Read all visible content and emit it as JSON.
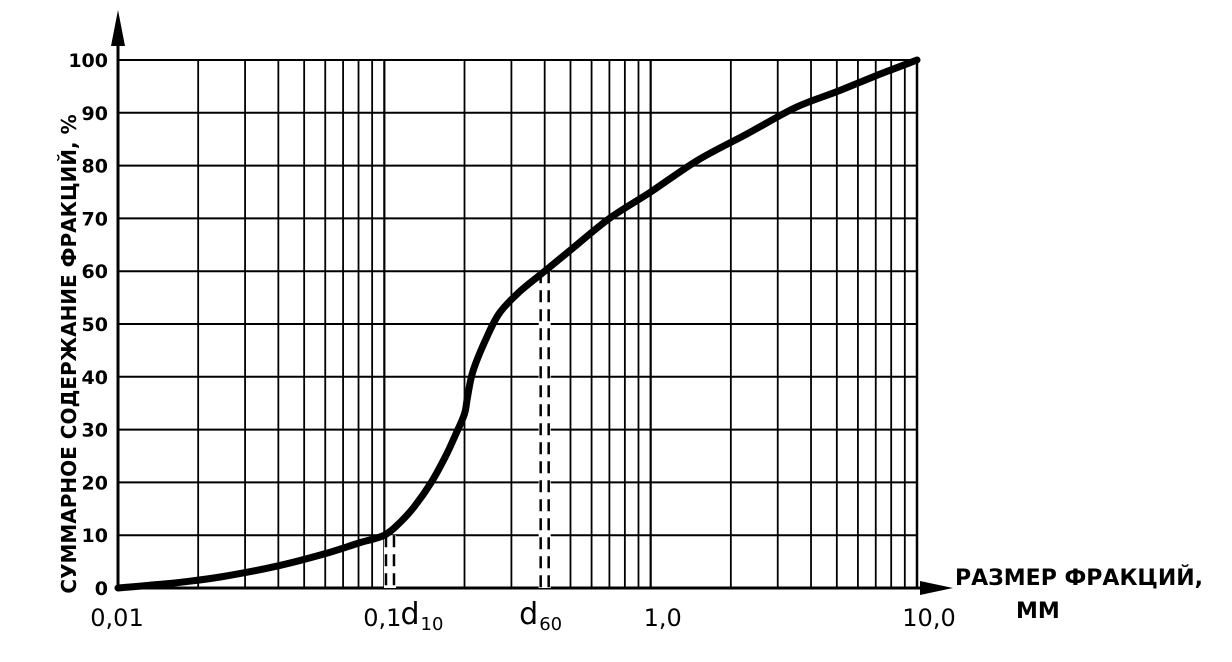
{
  "chart_data": {
    "type": "line",
    "x_scale": "log",
    "xlim": [
      0.01,
      10.0
    ],
    "ylim": [
      0,
      100
    ],
    "grid": true,
    "xlabel": "РАЗМЕР ФРАКЦИЙ,",
    "xlabel_unit": "ММ",
    "ylabel": "СУММАРНОЕ СОДЕРЖАНИЕ ФРАКЦИЙ, %",
    "x_tick_labels": [
      {
        "value": 0.01,
        "label": "0,01"
      },
      {
        "value": 0.1,
        "label": "0,1"
      },
      {
        "value": 1.0,
        "label": "1,0"
      },
      {
        "value": 10.0,
        "label": "10,0"
      }
    ],
    "y_ticks": [
      0,
      10,
      20,
      30,
      40,
      50,
      60,
      70,
      80,
      90,
      100
    ],
    "y_tick_labels": [
      "0",
      "10",
      "20",
      "30",
      "40",
      "50",
      "60",
      "70",
      "80",
      "90",
      "100"
    ],
    "series": [
      {
        "x": [
          0.01,
          0.013,
          0.018,
          0.025,
          0.04,
          0.06,
          0.08,
          0.1,
          0.115,
          0.13,
          0.15,
          0.17,
          0.185,
          0.2,
          0.205,
          0.215,
          0.24,
          0.27,
          0.32,
          0.4,
          0.5,
          0.7,
          1.0,
          1.5,
          2.3,
          3.5,
          5.0,
          7.0,
          10.0
        ],
        "y": [
          0,
          0.5,
          1.2,
          2.2,
          4.2,
          6.5,
          8.5,
          10,
          12.5,
          15.5,
          20,
          25,
          29,
          33,
          36,
          41,
          47,
          52,
          56,
          60,
          64,
          70,
          75,
          81,
          86,
          91,
          94,
          97,
          100
        ]
      }
    ],
    "annotations": [
      {
        "name": "d10",
        "letter": "d",
        "sub": "10",
        "x": 0.105,
        "y_from": 0,
        "y_to": 10
      },
      {
        "name": "d60",
        "letter": "d",
        "sub": "60",
        "x": 0.4,
        "y_from": 0,
        "y_to": 60
      }
    ]
  }
}
